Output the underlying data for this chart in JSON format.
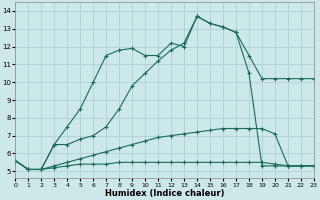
{
  "bg_color": "#cce8e8",
  "grid_color": "#aacece",
  "line_color": "#1a6b5a",
  "xlabel": "Humidex (Indice chaleur)",
  "xlim": [
    0,
    23
  ],
  "ylim": [
    4.6,
    14.5
  ],
  "xticks": [
    0,
    1,
    2,
    3,
    4,
    5,
    6,
    7,
    8,
    9,
    10,
    11,
    12,
    13,
    14,
    15,
    16,
    17,
    18,
    19,
    20,
    21,
    22,
    23
  ],
  "yticks": [
    5,
    6,
    7,
    8,
    9,
    10,
    11,
    12,
    13,
    14
  ],
  "curves": [
    {
      "x": [
        0,
        1,
        2,
        3,
        4,
        5,
        6,
        7,
        8,
        9,
        10,
        11,
        12,
        13,
        14,
        15,
        16,
        17,
        18,
        19,
        20,
        21,
        22,
        23
      ],
      "y": [
        5.6,
        5.1,
        5.1,
        5.2,
        5.3,
        5.4,
        5.4,
        5.4,
        5.5,
        5.5,
        5.5,
        5.5,
        5.5,
        5.5,
        5.5,
        5.5,
        5.5,
        5.5,
        5.5,
        5.5,
        5.4,
        5.3,
        5.3,
        5.3
      ]
    },
    {
      "x": [
        0,
        1,
        2,
        3,
        4,
        5,
        6,
        7,
        8,
        9,
        10,
        11,
        12,
        13,
        14,
        15,
        16,
        17,
        18,
        19,
        20,
        21,
        22,
        23
      ],
      "y": [
        5.6,
        5.1,
        5.1,
        5.3,
        5.5,
        5.7,
        5.9,
        6.1,
        6.3,
        6.5,
        6.7,
        6.9,
        7.0,
        7.1,
        7.2,
        7.3,
        7.4,
        7.4,
        7.4,
        7.4,
        7.1,
        5.3,
        5.3,
        5.3
      ]
    },
    {
      "x": [
        0,
        1,
        2,
        3,
        4,
        5,
        6,
        7,
        8,
        9,
        10,
        11,
        12,
        13,
        14,
        15,
        16,
        17,
        18,
        19,
        20,
        21,
        22,
        23
      ],
      "y": [
        5.6,
        5.1,
        5.1,
        6.5,
        6.5,
        6.8,
        7.0,
        7.5,
        8.5,
        9.8,
        10.5,
        11.2,
        11.8,
        12.2,
        13.7,
        13.3,
        13.1,
        12.8,
        10.5,
        5.3,
        5.3,
        5.3,
        5.3,
        5.3
      ]
    },
    {
      "x": [
        0,
        1,
        2,
        3,
        4,
        5,
        6,
        7,
        8,
        9,
        10,
        11,
        12,
        13,
        14,
        15,
        16,
        17,
        18,
        19,
        20,
        21,
        22,
        23
      ],
      "y": [
        5.6,
        5.1,
        5.1,
        6.5,
        7.5,
        8.5,
        10.0,
        11.5,
        11.8,
        11.9,
        11.5,
        11.5,
        12.2,
        12.0,
        13.7,
        13.3,
        13.1,
        12.8,
        11.5,
        10.2,
        10.2,
        10.2,
        10.2,
        10.2
      ]
    }
  ]
}
